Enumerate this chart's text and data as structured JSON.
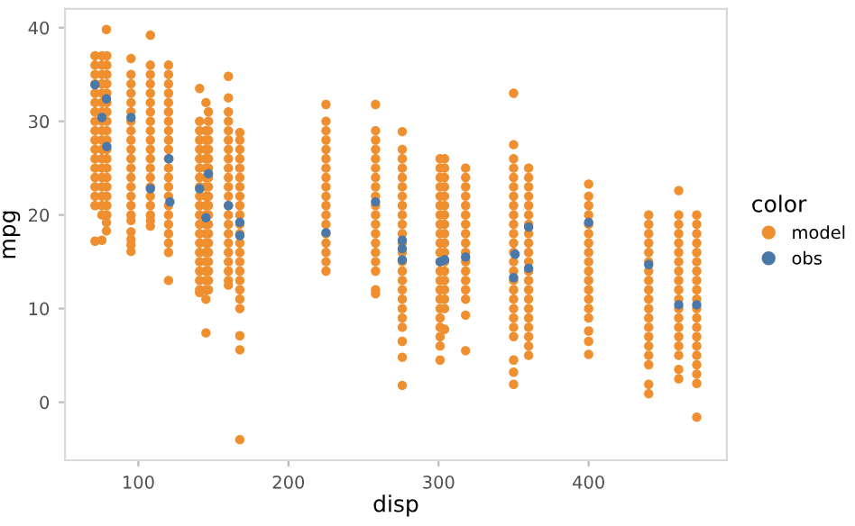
{
  "chart_data": {
    "type": "scatter",
    "xlabel": "disp",
    "ylabel": "mpg",
    "legend_title": "color",
    "legend": "right",
    "marker": "circle",
    "grid": false,
    "xlim": [
      51.1,
      492
    ],
    "ylim": [
      -6.2,
      42
    ],
    "xticks": [
      100,
      200,
      300,
      400
    ],
    "yticks": [
      0,
      10,
      20,
      30,
      40
    ],
    "series": [
      {
        "name": "model",
        "color": "#ef8f2f",
        "x": [
          71.1,
          71.1,
          71.1,
          71.1,
          71.1,
          71.1,
          71.1,
          71.1,
          71.1,
          71.1,
          71.1,
          71.1,
          71.1,
          71.1,
          71.1,
          71.1,
          71.1,
          71.1,
          75.7,
          75.7,
          75.7,
          75.7,
          75.7,
          75.7,
          75.7,
          75.7,
          75.7,
          75.7,
          75.7,
          75.7,
          75.7,
          75.7,
          75.7,
          75.7,
          75.7,
          75.7,
          75.7,
          78.7,
          78.7,
          78.7,
          79,
          79,
          79,
          79,
          79,
          79,
          79,
          79,
          79,
          79,
          79,
          79,
          79,
          79,
          79,
          79,
          79,
          79,
          95.1,
          95.1,
          95.1,
          95.1,
          95.1,
          95.1,
          95.1,
          95.1,
          95.1,
          95.1,
          95.1,
          95.1,
          95.1,
          95.1,
          95.1,
          95.1,
          95.1,
          95.1,
          95.1,
          95.1,
          95.1,
          95.1,
          108,
          108,
          108,
          108,
          108,
          108,
          108,
          108,
          108,
          108,
          108,
          108,
          108,
          108,
          108,
          108,
          108,
          108,
          108,
          108,
          120.1,
          120.1,
          120.1,
          120.1,
          120.1,
          120.1,
          120.1,
          120.1,
          120.1,
          120.1,
          120.1,
          120.1,
          120.1,
          120.1,
          120.1,
          120.1,
          120.1,
          120.1,
          120.1,
          120.1,
          120.1,
          120.1,
          140.8,
          140.8,
          140.8,
          140.8,
          140.8,
          140.8,
          140.8,
          140.8,
          140.8,
          140.8,
          140.8,
          140.8,
          140.8,
          140.8,
          140.8,
          140.8,
          140.8,
          140.8,
          140.8,
          140.8,
          140.8,
          145,
          145,
          145,
          145,
          145,
          145,
          145,
          145,
          145,
          145,
          145,
          145,
          145,
          145,
          145,
          145,
          145,
          145,
          145,
          145,
          145,
          146.7,
          146.7,
          146.7,
          146.7,
          146.7,
          146.7,
          146.7,
          146.7,
          146.7,
          146.7,
          146.7,
          146.7,
          146.7,
          146.7,
          146.7,
          146.7,
          146.7,
          146.7,
          146.7,
          146.7,
          160,
          160,
          160,
          160,
          160,
          160,
          160,
          160,
          160,
          160,
          160,
          160,
          160,
          160,
          160,
          160,
          160,
          160,
          160,
          160,
          160,
          160,
          167.6,
          167.6,
          167.6,
          167.6,
          167.6,
          167.6,
          167.6,
          167.6,
          167.6,
          167.6,
          167.6,
          167.6,
          167.6,
          167.6,
          167.6,
          167.6,
          167.6,
          167.6,
          167.6,
          167.6,
          167.6,
          167.6,
          167.6,
          225,
          225,
          225,
          225,
          225,
          225,
          225,
          225,
          225,
          225,
          225,
          225,
          225,
          225,
          225,
          225,
          225,
          225,
          258,
          258,
          258,
          258,
          258,
          258,
          258,
          258,
          258,
          258,
          258,
          258,
          258,
          258,
          258,
          258,
          258,
          258,
          258,
          275.8,
          275.8,
          275.8,
          275.8,
          275.8,
          275.8,
          275.8,
          275.8,
          275.8,
          275.8,
          275.8,
          275.8,
          275.8,
          275.8,
          275.8,
          275.8,
          275.8,
          275.8,
          275.8,
          275.8,
          275.8,
          275.8,
          275.8,
          275.8,
          301,
          301,
          301,
          301,
          301,
          301,
          301,
          301,
          301,
          301,
          301,
          301,
          301,
          301,
          301,
          301,
          301,
          301,
          301,
          301,
          301,
          301,
          304,
          304,
          304,
          304,
          304,
          304,
          304,
          304,
          304,
          304,
          304,
          304,
          304,
          304,
          304,
          304,
          304,
          304,
          318,
          318,
          318,
          318,
          318,
          318,
          318,
          318,
          318,
          318,
          318,
          318,
          318,
          318,
          318,
          318,
          318,
          350,
          350,
          350,
          350,
          350,
          350,
          350,
          350,
          350,
          350,
          350,
          350,
          350,
          350,
          350,
          350,
          350,
          350,
          350,
          350,
          350,
          350,
          350,
          350,
          350,
          360,
          360,
          360,
          360,
          360,
          360,
          360,
          360,
          360,
          360,
          360,
          360,
          360,
          360,
          360,
          360,
          360,
          360,
          360,
          360,
          360,
          400,
          400,
          400,
          400,
          400,
          400,
          400,
          400,
          400,
          400,
          400,
          400,
          400,
          400,
          400,
          400,
          400,
          400,
          440,
          440,
          440,
          440,
          440,
          440,
          440,
          440,
          440,
          440,
          440,
          440,
          440,
          440,
          440,
          440,
          440,
          440,
          440,
          460,
          460,
          460,
          460,
          460,
          460,
          460,
          460,
          460,
          460,
          460,
          460,
          460,
          460,
          460,
          460,
          460,
          460,
          460,
          472,
          472,
          472,
          472,
          472,
          472,
          472,
          472,
          472,
          472,
          472,
          472,
          472,
          472,
          472,
          472,
          472,
          472,
          472,
          472
        ],
        "values": [
          17.2,
          21,
          22,
          23,
          24,
          25,
          26,
          27,
          28,
          29,
          30,
          31,
          32,
          33,
          34,
          35,
          36,
          37,
          17.3,
          20,
          21,
          22,
          23,
          24,
          25,
          26,
          27,
          28,
          29,
          30,
          31,
          32,
          33,
          34,
          35,
          36,
          37,
          18.3,
          19.2,
          39.8,
          20,
          21,
          22,
          23,
          24,
          25,
          26,
          27,
          28,
          29,
          30,
          31,
          32,
          33,
          34,
          35,
          36,
          37,
          16.1,
          16.8,
          17.4,
          18.2,
          19.4,
          20,
          21,
          22,
          23,
          24,
          25,
          26,
          27,
          28,
          29,
          30,
          31,
          32,
          33,
          34,
          35,
          36.7,
          18.8,
          19.4,
          20,
          21,
          22,
          23,
          24,
          25,
          26,
          27,
          28,
          29,
          30,
          31,
          32,
          33,
          34,
          35,
          36,
          39.2,
          13,
          16,
          17,
          18,
          19,
          20,
          21,
          22,
          23,
          24,
          25,
          26,
          27,
          28,
          29,
          30,
          31,
          32,
          33,
          34,
          35,
          36,
          11.7,
          12,
          13,
          14,
          15,
          16,
          17,
          18,
          19,
          20,
          21,
          22,
          23,
          24,
          25,
          26,
          27,
          28,
          29,
          30,
          33.5,
          7.4,
          11,
          12,
          13,
          14,
          15,
          16,
          17,
          18,
          19,
          20,
          21,
          22,
          23,
          24,
          25,
          26,
          27,
          28,
          29,
          32,
          12,
          13,
          14,
          15,
          16,
          17,
          18,
          19,
          20,
          21,
          22,
          23,
          24,
          25,
          26,
          27,
          28,
          29,
          30,
          31,
          12.5,
          13,
          14,
          15,
          16,
          17,
          18,
          19,
          20,
          21,
          22,
          23,
          24,
          25,
          26,
          27,
          28,
          29,
          30,
          31,
          32.5,
          34.8,
          -4,
          5.6,
          7.1,
          10,
          11,
          12,
          13,
          14,
          15,
          16,
          17,
          18,
          19,
          20,
          21,
          22,
          23,
          24,
          25,
          26,
          27,
          28,
          28.8,
          14,
          15,
          16,
          17,
          18,
          19,
          20,
          21,
          22,
          23,
          24,
          25,
          26,
          27,
          28,
          29,
          30,
          31.8,
          11.6,
          12,
          14,
          15,
          16,
          17,
          18,
          19,
          20,
          21,
          22,
          23,
          24,
          25,
          26,
          27,
          28,
          29,
          31.8,
          1.8,
          4.8,
          6.5,
          8,
          9,
          10,
          11,
          12,
          13,
          14,
          15,
          16,
          17,
          18,
          19,
          20,
          21,
          22,
          23,
          24,
          25,
          26,
          27,
          28.9,
          4.5,
          6,
          7,
          8,
          9,
          10,
          11,
          12,
          13,
          14,
          15,
          16,
          17,
          18,
          19,
          20,
          21,
          22,
          23,
          24,
          25,
          26,
          7.8,
          10,
          11,
          12,
          13,
          14,
          15,
          16,
          17,
          18,
          19,
          20,
          21,
          22,
          23,
          24,
          25,
          26,
          5.5,
          9.3,
          11,
          12,
          13,
          14,
          15,
          16,
          17,
          18,
          19,
          20,
          21,
          22,
          23,
          24,
          25,
          1.9,
          3.2,
          4.5,
          7,
          8,
          9,
          10,
          11,
          12,
          13,
          14,
          15,
          16,
          17,
          18,
          19,
          20,
          21,
          22,
          23,
          24,
          25,
          26,
          27.5,
          33,
          5,
          6,
          7,
          8,
          9,
          10,
          11,
          12,
          13,
          14,
          15,
          16,
          17,
          18,
          19,
          20,
          21,
          22,
          23,
          24,
          25,
          5.1,
          6.5,
          7.6,
          9,
          10,
          11,
          12,
          13,
          14,
          15,
          16,
          17,
          18,
          19,
          20,
          21,
          22,
          23.3,
          0.9,
          1.9,
          4,
          5,
          6,
          7,
          8,
          9,
          10,
          11,
          12,
          13,
          14,
          15,
          16,
          17,
          18,
          19,
          20,
          2.5,
          3.5,
          5,
          6,
          7,
          8,
          9,
          10,
          11,
          12,
          13,
          14,
          15,
          16,
          17,
          18,
          19,
          20,
          22.6,
          -1.6,
          2,
          3,
          4,
          5,
          6,
          7,
          8,
          9,
          10,
          11,
          12,
          13,
          14,
          15,
          16,
          17,
          18,
          19,
          20
        ]
      },
      {
        "name": "obs",
        "color": "#4a78a8",
        "x": [
          71.1,
          75.7,
          78.7,
          79,
          95.1,
          108,
          120.1,
          120.3,
          121,
          140.8,
          145,
          146.7,
          160,
          167.6,
          167.6,
          225,
          258,
          275.8,
          275.8,
          275.8,
          301,
          304,
          318,
          350,
          351,
          360,
          360,
          400,
          440,
          460,
          472
        ],
        "values": [
          33.9,
          30.4,
          32.4,
          27.3,
          30.4,
          22.8,
          null,
          26,
          21.4,
          22.8,
          19.7,
          24.4,
          21,
          19.2,
          17.8,
          18.1,
          21.4,
          16.4,
          17.3,
          15.2,
          15,
          15.2,
          15.5,
          13.3,
          15.8,
          18.7,
          14.3,
          19.2,
          14.7,
          10.4,
          10.4
        ]
      }
    ]
  }
}
